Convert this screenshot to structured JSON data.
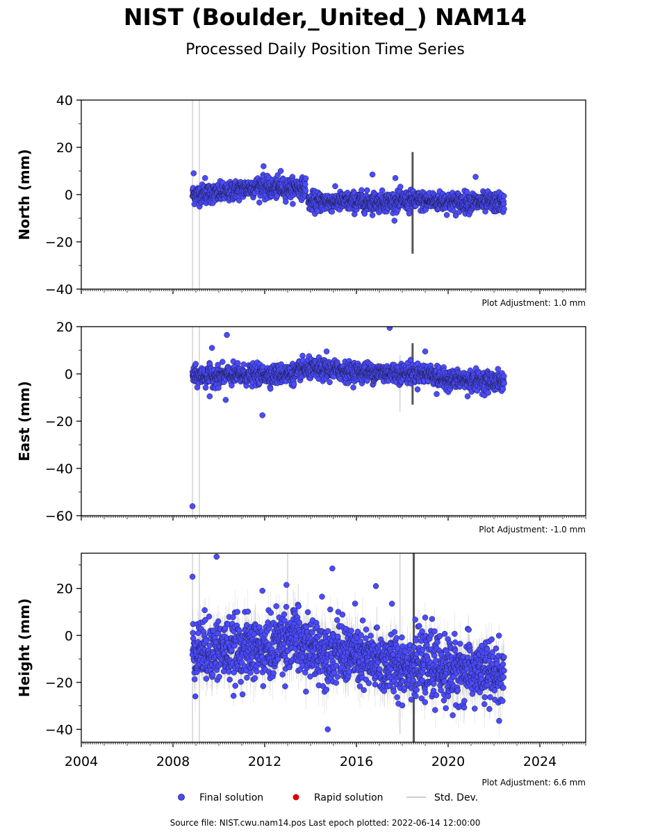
{
  "title": "NIST (Boulder,_United_) NAM14",
  "subtitle": "Processed Daily Position Time Series",
  "source_note": "Source file: NIST.cwu.nam14.pos  Last epoch plotted: 2022-06-14 12:00:00",
  "legend": {
    "final": "Final solution",
    "rapid": "Rapid solution",
    "std": "Std. Dev."
  },
  "colors": {
    "final_fill": "#4b4bff",
    "final_edge": "#1a1a40",
    "rapid": "#dd0000",
    "std": "#b0b0b0",
    "std_dark": "#555555",
    "axis": "#000000"
  },
  "chart_data": [
    {
      "type": "scatter",
      "name": "north",
      "ylabel": "North (mm)",
      "ylim": [
        -40,
        40
      ],
      "yticks": [
        "40",
        "20",
        "0",
        "−20",
        "−40"
      ],
      "ytick_values": [
        40,
        20,
        0,
        -20,
        -40
      ],
      "xlim": [
        2004,
        2026
      ],
      "adjustment": "Plot Adjustment: 1.0 mm",
      "data_start": 2008.85,
      "data_end": 2022.45,
      "segments": [
        {
          "x0": 2008.85,
          "x1": 2010.5,
          "y0": 0,
          "y1": 1
        },
        {
          "x0": 2010.5,
          "x1": 2012.0,
          "y0": 1.5,
          "y1": 4
        },
        {
          "x0": 2012.0,
          "x1": 2013.8,
          "y0": 2.5,
          "y1": 3
        },
        {
          "x0": 2013.9,
          "x1": 2018.0,
          "y0": -3,
          "y1": -3
        },
        {
          "x0": 2018.0,
          "x1": 2022.45,
          "y0": -2.5,
          "y1": -3.5
        }
      ],
      "noise": 2.0,
      "outliers": [
        {
          "x": 2008.9,
          "y": 9
        },
        {
          "x": 2011.95,
          "y": 12
        },
        {
          "x": 2012.7,
          "y": 10
        },
        {
          "x": 2016.7,
          "y": 8.5
        },
        {
          "x": 2017.7,
          "y": 7
        },
        {
          "x": 2021.2,
          "y": 7.5
        },
        {
          "x": 2009.4,
          "y": 7
        },
        {
          "x": 2018.3,
          "y": -8
        },
        {
          "x": 2014.3,
          "y": -7
        }
      ],
      "std_spikes": [
        {
          "x": 2018.45,
          "ylo": -25,
          "yhi": 18,
          "dark": true
        },
        {
          "x": 2008.85,
          "ylo": -40,
          "yhi": 40,
          "dark": false
        },
        {
          "x": 2009.15,
          "ylo": -40,
          "yhi": 40,
          "dark": false
        }
      ]
    },
    {
      "type": "scatter",
      "name": "east",
      "ylabel": "East (mm)",
      "ylim": [
        -60,
        20
      ],
      "yticks": [
        "20",
        "0",
        "−20",
        "−40",
        "−60"
      ],
      "ytick_values": [
        20,
        0,
        -20,
        -40,
        -60
      ],
      "xlim": [
        2004,
        2026
      ],
      "adjustment": "Plot Adjustment: -1.0 mm",
      "data_start": 2008.85,
      "data_end": 2022.45,
      "segments": [
        {
          "x0": 2008.85,
          "x1": 2013.5,
          "y0": -1,
          "y1": 0
        },
        {
          "x0": 2013.5,
          "x1": 2015.5,
          "y0": 2,
          "y1": 1.5
        },
        {
          "x0": 2015.5,
          "x1": 2019.5,
          "y0": 1,
          "y1": 0
        },
        {
          "x0": 2019.5,
          "x1": 2022.45,
          "y0": -2,
          "y1": -3.5
        }
      ],
      "noise": 2.0,
      "outliers": [
        {
          "x": 2008.85,
          "y": -56
        },
        {
          "x": 2009.6,
          "y": -9.5
        },
        {
          "x": 2010.3,
          "y": -11
        },
        {
          "x": 2011.9,
          "y": -17.5
        },
        {
          "x": 2010.35,
          "y": 16.5
        },
        {
          "x": 2009.7,
          "y": 11
        },
        {
          "x": 2017.45,
          "y": 19.5
        },
        {
          "x": 2019.0,
          "y": 9.5
        },
        {
          "x": 2014.7,
          "y": 9.5
        },
        {
          "x": 2020.85,
          "y": -9.5
        },
        {
          "x": 2019.5,
          "y": -8.5
        }
      ],
      "std_spikes": [
        {
          "x": 2018.45,
          "ylo": -13,
          "yhi": 13,
          "dark": true
        },
        {
          "x": 2008.85,
          "ylo": -60,
          "yhi": 20,
          "dark": false
        },
        {
          "x": 2009.15,
          "ylo": -60,
          "yhi": 20,
          "dark": false
        },
        {
          "x": 2017.9,
          "ylo": -16,
          "yhi": 8,
          "dark": false
        }
      ]
    },
    {
      "type": "scatter",
      "name": "height",
      "ylabel": "Height (mm)",
      "ylim": [
        -45.5,
        35
      ],
      "yticks": [
        "20",
        "0",
        "−20",
        "−40"
      ],
      "ytick_values": [
        20,
        0,
        -20,
        -40
      ],
      "xlim": [
        2004,
        2026
      ],
      "xticks": [
        "2004",
        "2008",
        "2012",
        "2016",
        "2020",
        "2024"
      ],
      "xtick_values": [
        2004,
        2008,
        2012,
        2016,
        2020,
        2024
      ],
      "adjustment": "Plot Adjustment: 6.6 mm",
      "data_start": 2008.85,
      "data_end": 2022.45,
      "segments": [
        {
          "x0": 2008.85,
          "x1": 2012.5,
          "y0": -6,
          "y1": -6
        },
        {
          "x0": 2012.5,
          "x1": 2013.5,
          "y0": -1,
          "y1": -2
        },
        {
          "x0": 2013.5,
          "x1": 2016.0,
          "y0": -5,
          "y1": -8
        },
        {
          "x0": 2016.0,
          "x1": 2018.0,
          "y0": -10,
          "y1": -13
        },
        {
          "x0": 2018.0,
          "x1": 2022.45,
          "y0": -12,
          "y1": -17
        }
      ],
      "noise": 6.5,
      "outliers": [
        {
          "x": 2008.85,
          "y": 25
        },
        {
          "x": 2009.9,
          "y": 33.5
        },
        {
          "x": 2014.95,
          "y": 28.5
        },
        {
          "x": 2014.75,
          "y": -40
        },
        {
          "x": 2012.95,
          "y": 21.5
        },
        {
          "x": 2016.85,
          "y": 21
        },
        {
          "x": 2011.9,
          "y": 19
        },
        {
          "x": 2014.5,
          "y": 16.5
        },
        {
          "x": 2017.55,
          "y": 13.5
        },
        {
          "x": 2019.3,
          "y": 7
        },
        {
          "x": 2019.9,
          "y": -31
        },
        {
          "x": 2020.2,
          "y": -34
        }
      ],
      "std_spikes": [
        {
          "x": 2018.5,
          "ylo": -45.5,
          "yhi": 35,
          "dark": true
        },
        {
          "x": 2008.85,
          "ylo": -45.5,
          "yhi": 35,
          "dark": false
        },
        {
          "x": 2009.15,
          "ylo": -45.5,
          "yhi": 35,
          "dark": false
        },
        {
          "x": 2017.9,
          "ylo": -42,
          "yhi": 35,
          "dark": false
        },
        {
          "x": 2013.0,
          "ylo": -15,
          "yhi": 35,
          "dark": false
        }
      ]
    }
  ]
}
